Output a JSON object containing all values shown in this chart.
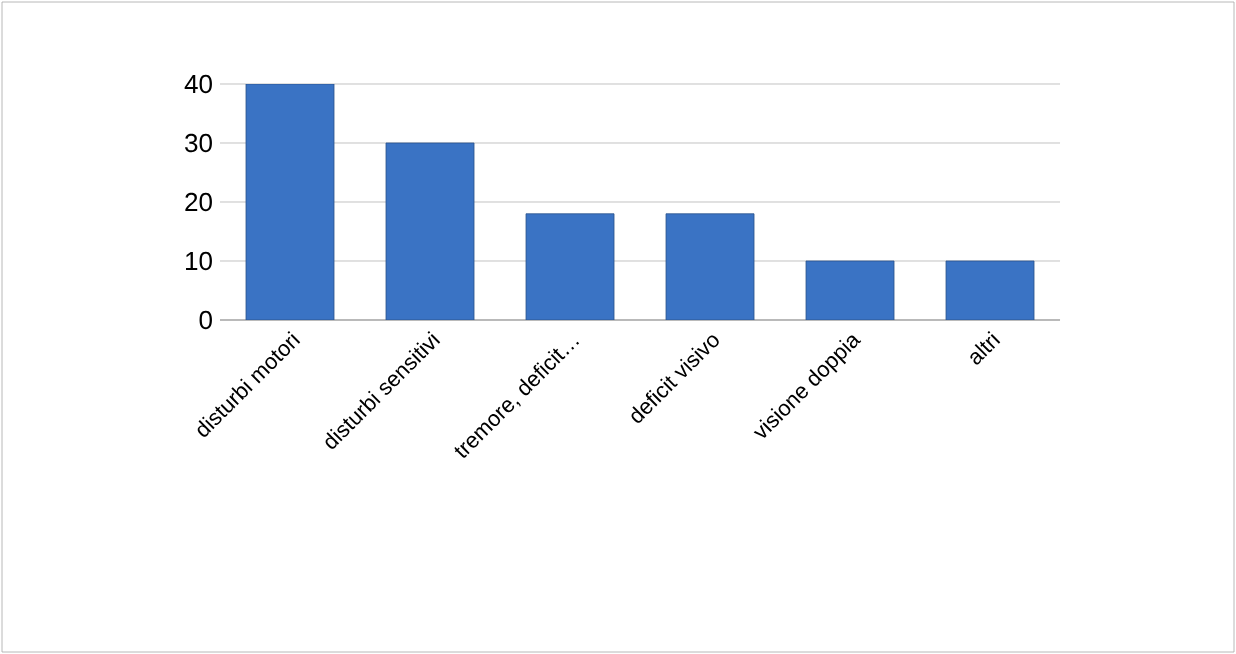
{
  "chart_data": {
    "type": "bar",
    "categories": [
      "disturbi motori",
      "disturbi sensitivi",
      "tremore, deficit…",
      "deficit visivo",
      "visione doppia",
      "altri"
    ],
    "values": [
      40,
      30,
      18,
      18,
      10,
      10
    ],
    "color": "#3a73c4",
    "ylim": [
      0,
      40
    ],
    "yticks": [
      0,
      10,
      20,
      30,
      40
    ],
    "grid": "y"
  }
}
